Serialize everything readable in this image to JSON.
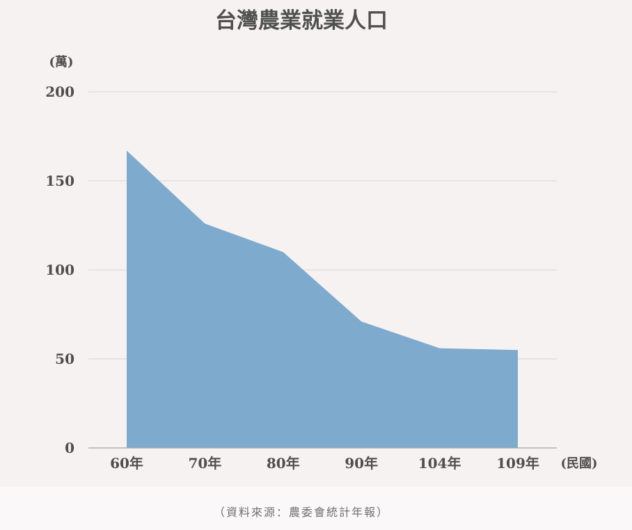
{
  "chart_data": {
    "type": "area",
    "title": "台灣農業就業人口",
    "y_unit_label": "(萬)",
    "x_unit_label": "(民國)",
    "categories": [
      "60年",
      "70年",
      "80年",
      "90年",
      "104年",
      "109年"
    ],
    "values": [
      167,
      126,
      110,
      71,
      56,
      55
    ],
    "ylim": [
      0,
      200
    ],
    "yticks": [
      0,
      50,
      100,
      150,
      200
    ],
    "grid": true,
    "series_color": "#7eaacd",
    "source": "（資料來源：農委會統計年報）"
  }
}
